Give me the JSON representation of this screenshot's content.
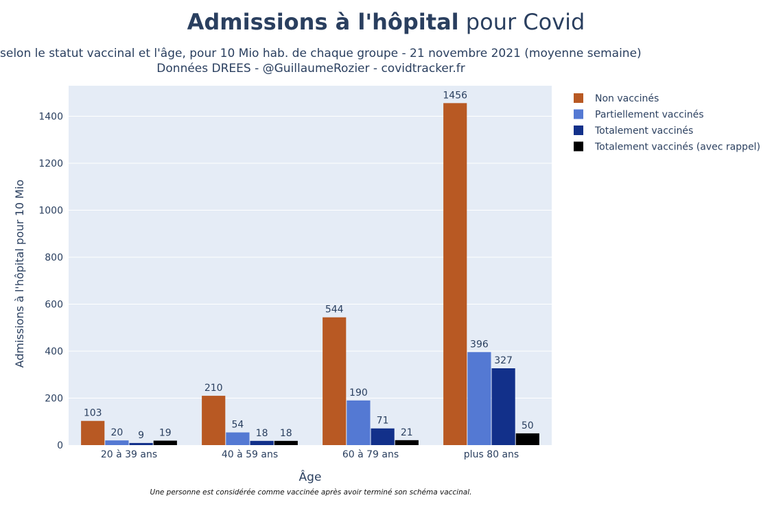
{
  "title": {
    "bold_part": "Admissions à l'hôpital",
    "regular_part": "pour Covid"
  },
  "subtitle": {
    "line1": "selon le statut vaccinal et l'âge, pour 10 Mio hab. de chaque groupe - 21 novembre 2021 (moyenne semaine)",
    "line2": "Données DREES - @GuillaumeRozier - covidtracker.fr"
  },
  "footnote": "Une personne est considérée comme vaccinée après avoir terminé son schéma vaccinal.",
  "chart_data": {
    "type": "bar",
    "categories": [
      "20 à 39 ans",
      "40 à 59 ans",
      "60 à 79 ans",
      "plus 80 ans"
    ],
    "series": [
      {
        "name": "Non vaccinés",
        "color": "#b85923",
        "values": [
          103,
          210,
          544,
          1456
        ]
      },
      {
        "name": "Partiellement vaccinés",
        "color": "#5479d3",
        "values": [
          20,
          54,
          190,
          396
        ]
      },
      {
        "name": "Totalement vaccinés",
        "color": "#12308a",
        "values": [
          9,
          18,
          71,
          327
        ]
      },
      {
        "name": "Totalement vaccinés (avec rappel)",
        "color": "#000000",
        "values": [
          19,
          18,
          21,
          50
        ]
      }
    ],
    "xlabel": "Âge",
    "ylabel": "Admissions à l'hôpital pour 10 Mio",
    "ylim": [
      0,
      1530
    ],
    "yticks": [
      0,
      200,
      400,
      600,
      800,
      1000,
      1200,
      1400
    ],
    "grid": true,
    "legend": "right",
    "plot_background": "#e5ecf6"
  }
}
